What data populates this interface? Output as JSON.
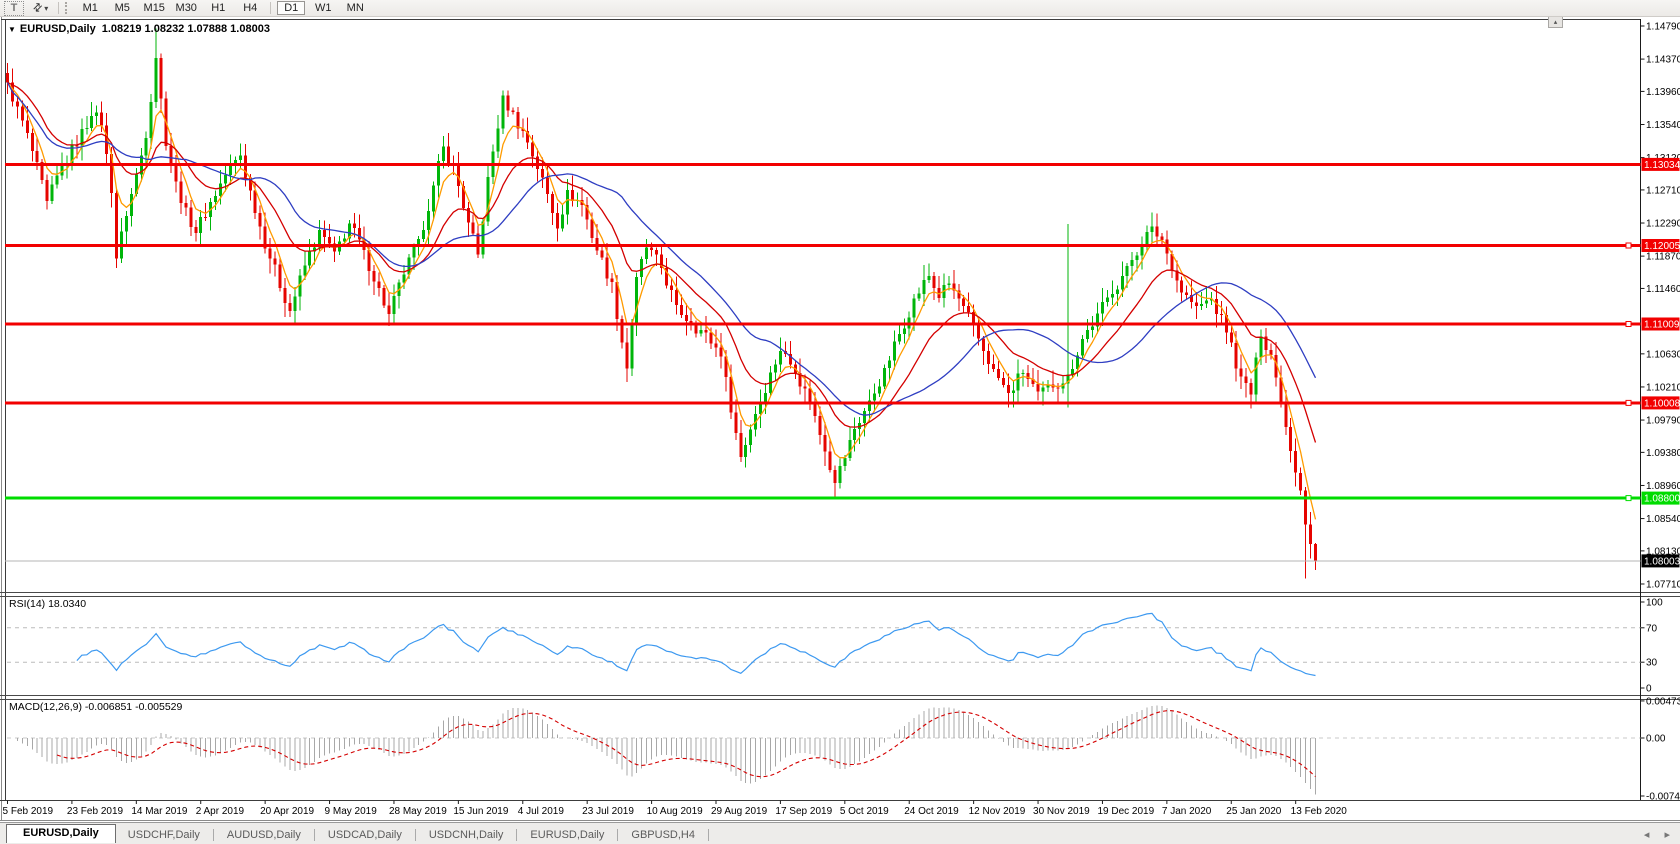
{
  "toolbar": {
    "text_tool_label": "T",
    "arrows_icon": "⇅",
    "dropdown_arrow": "▾",
    "timeframes": [
      "M1",
      "M5",
      "M15",
      "M30",
      "H1",
      "H4",
      "D1",
      "W1",
      "MN"
    ],
    "active_timeframe": "D1"
  },
  "chart": {
    "title": {
      "marker": "▼",
      "symbol": "EURUSD,Daily",
      "quotes": "1.08219 1.08232 1.07888 1.08003"
    },
    "scroll_marker": "▴"
  },
  "chart_data": {
    "type": "candlestick",
    "symbol": "EURUSD",
    "timeframe": "Daily",
    "ohlc_display": {
      "open": "1.08219",
      "high": "1.08232",
      "low": "1.07888",
      "close": "1.08003"
    },
    "y_axis_ticks": [
      "1.14790",
      "1.14370",
      "1.13960",
      "1.13540",
      "1.13120",
      "1.12710",
      "1.12290",
      "1.11870",
      "1.11460",
      "1.10630",
      "1.10210",
      "1.09790",
      "1.09380",
      "1.08960",
      "1.08540",
      "1.08130",
      "1.07710"
    ],
    "x_axis_labels": [
      {
        "i": 0,
        "label": "5 Feb 2019"
      },
      {
        "i": 13,
        "label": "23 Feb 2019"
      },
      {
        "i": 26,
        "label": "14 Mar 2019"
      },
      {
        "i": 39,
        "label": "2 Apr 2019"
      },
      {
        "i": 52,
        "label": "20 Apr 2019"
      },
      {
        "i": 65,
        "label": "9 May 2019"
      },
      {
        "i": 78,
        "label": "28 May 2019"
      },
      {
        "i": 91,
        "label": "15 Jun 2019"
      },
      {
        "i": 104,
        "label": "4 Jul 2019"
      },
      {
        "i": 117,
        "label": "23 Jul 2019"
      },
      {
        "i": 130,
        "label": "10 Aug 2019"
      },
      {
        "i": 143,
        "label": "29 Aug 2019"
      },
      {
        "i": 156,
        "label": "17 Sep 2019"
      },
      {
        "i": 169,
        "label": "5 Oct 2019"
      },
      {
        "i": 182,
        "label": "24 Oct 2019"
      },
      {
        "i": 195,
        "label": "12 Nov 2019"
      },
      {
        "i": 208,
        "label": "30 Nov 2019"
      },
      {
        "i": 221,
        "label": "19 Dec 2019"
      },
      {
        "i": 234,
        "label": "7 Jan 2020"
      },
      {
        "i": 247,
        "label": "25 Jan 2020"
      },
      {
        "i": 260,
        "label": "13 Feb 2020"
      }
    ],
    "price_scale": {
      "top": 1.14866,
      "bottom": 1.07621
    },
    "candle_count": 265,
    "up_color": "#00b50a",
    "down_color": "#e60400",
    "close_anchors": [
      [
        0,
        1.1405
      ],
      [
        2,
        1.1375
      ],
      [
        5,
        1.132
      ],
      [
        8,
        1.1255
      ],
      [
        11,
        1.13
      ],
      [
        14,
        1.133
      ],
      [
        17,
        1.1368
      ],
      [
        19,
        1.1355
      ],
      [
        21,
        1.127
      ],
      [
        22,
        1.1185
      ],
      [
        24,
        1.124
      ],
      [
        26,
        1.129
      ],
      [
        28,
        1.134
      ],
      [
        30,
        1.144
      ],
      [
        32,
        1.133
      ],
      [
        34,
        1.128
      ],
      [
        36,
        1.1245
      ],
      [
        38,
        1.1218
      ],
      [
        41,
        1.1255
      ],
      [
        44,
        1.129
      ],
      [
        47,
        1.1315
      ],
      [
        50,
        1.1245
      ],
      [
        53,
        1.1185
      ],
      [
        57,
        1.1118
      ],
      [
        60,
        1.1175
      ],
      [
        63,
        1.1218
      ],
      [
        66,
        1.119
      ],
      [
        69,
        1.1228
      ],
      [
        72,
        1.1192
      ],
      [
        75,
        1.1145
      ],
      [
        77,
        1.1112
      ],
      [
        80,
        1.1165
      ],
      [
        83,
        1.1205
      ],
      [
        86,
        1.1275
      ],
      [
        88,
        1.1325
      ],
      [
        90,
        1.13
      ],
      [
        93,
        1.1228
      ],
      [
        95,
        1.1188
      ],
      [
        97,
        1.1285
      ],
      [
        100,
        1.1388
      ],
      [
        102,
        1.1368
      ],
      [
        105,
        1.1332
      ],
      [
        108,
        1.1285
      ],
      [
        111,
        1.1225
      ],
      [
        113,
        1.1268
      ],
      [
        116,
        1.1252
      ],
      [
        119,
        1.1195
      ],
      [
        122,
        1.1152
      ],
      [
        124,
        1.1078
      ],
      [
        125,
        1.1045
      ],
      [
        127,
        1.1158
      ],
      [
        129,
        1.1198
      ],
      [
        132,
        1.1172
      ],
      [
        135,
        1.1122
      ],
      [
        138,
        1.1102
      ],
      [
        141,
        1.1088
      ],
      [
        144,
        1.1062
      ],
      [
        146,
        1.0992
      ],
      [
        148,
        1.0932
      ],
      [
        151,
        1.0988
      ],
      [
        154,
        1.1038
      ],
      [
        156,
        1.1068
      ],
      [
        159,
        1.1042
      ],
      [
        162,
        1.1002
      ],
      [
        165,
        1.0942
      ],
      [
        167,
        1.0902
      ],
      [
        169,
        1.0932
      ],
      [
        171,
        1.0968
      ],
      [
        174,
        1.1002
      ],
      [
        177,
        1.1042
      ],
      [
        180,
        1.1088
      ],
      [
        183,
        1.1132
      ],
      [
        186,
        1.1162
      ],
      [
        188,
        1.1135
      ],
      [
        190,
        1.1152
      ],
      [
        193,
        1.1122
      ],
      [
        196,
        1.1082
      ],
      [
        199,
        1.1042
      ],
      [
        202,
        1.1012
      ],
      [
        205,
        1.104
      ],
      [
        208,
        1.1012
      ],
      [
        211,
        1.1022
      ],
      [
        214,
        1.1035
      ],
      [
        217,
        1.1082
      ],
      [
        220,
        1.1112
      ],
      [
        223,
        1.1142
      ],
      [
        226,
        1.1172
      ],
      [
        229,
        1.1205
      ],
      [
        231,
        1.1222
      ],
      [
        233,
        1.1208
      ],
      [
        235,
        1.1172
      ],
      [
        237,
        1.1142
      ],
      [
        240,
        1.1122
      ],
      [
        243,
        1.1132
      ],
      [
        246,
        1.1092
      ],
      [
        249,
        1.1032
      ],
      [
        251,
        1.1012
      ],
      [
        253,
        1.1088
      ],
      [
        255,
        1.1062
      ],
      [
        257,
        1.1002
      ],
      [
        259,
        1.0942
      ],
      [
        261,
        1.0892
      ],
      [
        262,
        1.0848
      ],
      [
        263,
        1.08219
      ],
      [
        264,
        1.08003
      ]
    ],
    "wick_overrides": {
      "30": {
        "h": 1.1476
      },
      "125": {
        "l": 1.1027
      },
      "148": {
        "l": 1.0926
      },
      "167": {
        "l": 1.0879
      },
      "214": {
        "h": 1.1228,
        "l": 1.0995
      },
      "262": {
        "l": 1.0778
      },
      "264": {
        "h": 1.08232,
        "l": 1.07888
      }
    },
    "moving_averages": [
      {
        "kind": "ema",
        "period": 5,
        "color": "#ff9b00"
      },
      {
        "kind": "ema",
        "period": 16,
        "color": "#d40000"
      },
      {
        "kind": "sma",
        "period": 28,
        "color": "#2f3ec2"
      }
    ],
    "horizontal_lines": [
      {
        "price": 1.13034,
        "label": "1.13034",
        "color": "#f20000",
        "width": 3,
        "handle": false
      },
      {
        "price": 1.12005,
        "label": "1.12005",
        "color": "#f20000",
        "width": 3,
        "handle": true
      },
      {
        "price": 1.11009,
        "label": "1.11009",
        "color": "#f20000",
        "width": 3,
        "handle": true
      },
      {
        "price": 1.10008,
        "label": "1.10008",
        "color": "#f20000",
        "width": 3,
        "handle": true
      },
      {
        "price": 1.088,
        "label": "1.08800",
        "color": "#00dc00",
        "width": 3,
        "handle": true
      }
    ],
    "current_price": {
      "value": 1.08003,
      "label": "1.08003",
      "line_color": "#b5b5b5",
      "label_bg": "#000000",
      "label_fg": "#ffffff"
    }
  },
  "rsi": {
    "label": "RSI(14) 18.0340",
    "period": 14,
    "value": 18.034,
    "scale_ticks": [
      100,
      70,
      30,
      0
    ],
    "levels": [
      70,
      30
    ],
    "line_color": "#3d99f0",
    "range": [
      0,
      100
    ]
  },
  "macd": {
    "label": "MACD(12,26,9) -0.006851 -0.005529",
    "fast": 12,
    "slow": 26,
    "signal_period": 9,
    "macd_value": -0.006851,
    "signal_value": -0.005529,
    "scale_ticks": [
      {
        "label": "0.00473",
        "value": 0.00473
      },
      {
        "label": "0.00",
        "value": 0
      },
      {
        "label": "-0.00740",
        "value": -0.0074
      }
    ],
    "bar_color": "#a8a8a8",
    "signal_color": "#d40000"
  },
  "tabs": {
    "items": [
      {
        "label": "EURUSD,Daily",
        "active": true
      },
      {
        "label": "USDCHF,Daily",
        "active": false
      },
      {
        "label": "AUDUSD,Daily",
        "active": false
      },
      {
        "label": "USDCAD,Daily",
        "active": false
      },
      {
        "label": "USDCNH,Daily",
        "active": false
      },
      {
        "label": "EURUSD,Daily",
        "active": false
      },
      {
        "label": "GBPUSD,H4",
        "active": false
      }
    ],
    "scroll_left": "◂",
    "scroll_right": "▸"
  }
}
